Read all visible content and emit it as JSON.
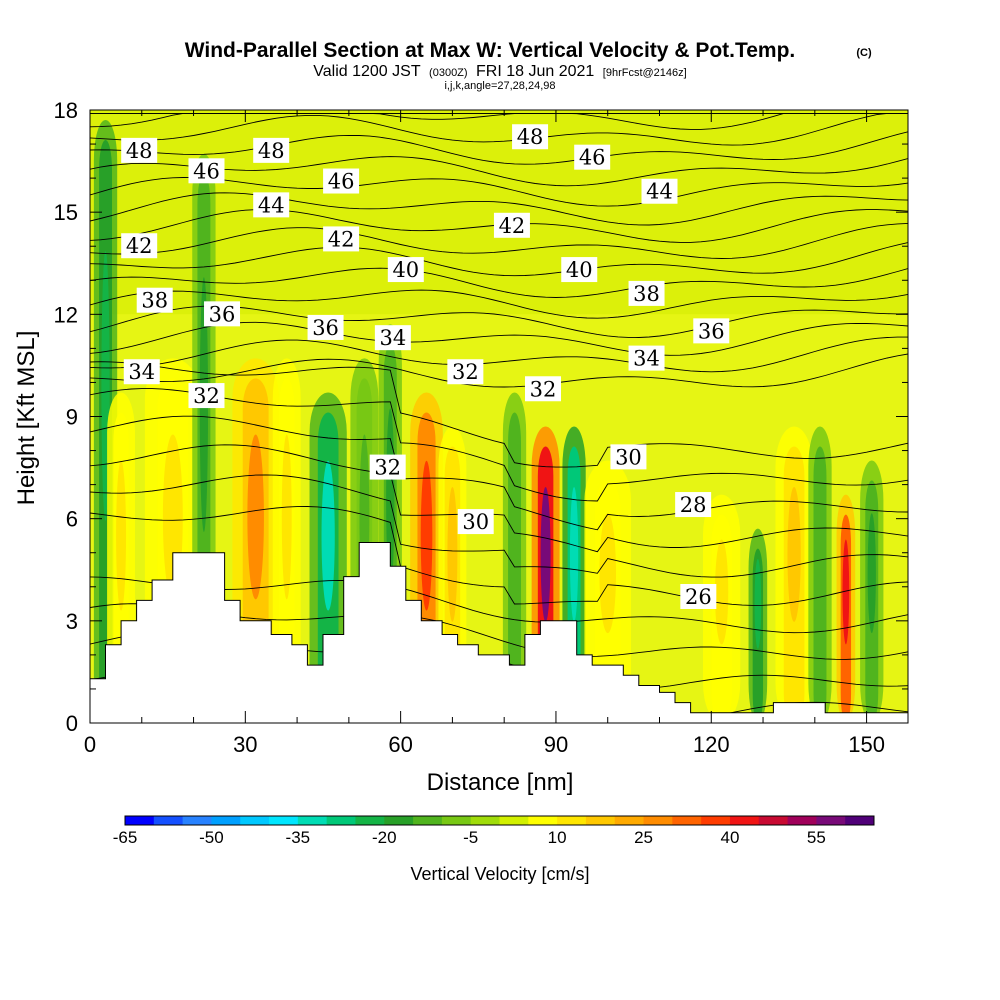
{
  "title": {
    "main": "Wind-Parallel Section at Max W: Vertical Velocity & Pot.Temp.",
    "copyright": "(C)",
    "valid_prefix": "Valid 1200 JST",
    "valid_utc": "(0300Z)",
    "valid_date": "FRI 18 Jun 2021",
    "forecast": "[9hrFcst@2146z]",
    "indices": "i,j,k,angle=27,28,24,98"
  },
  "chart_data": {
    "type": "heatmap",
    "xlabel": "Distance [nm]",
    "ylabel": "Height [Kft MSL]",
    "xlim": [
      0,
      158
    ],
    "ylim": [
      0,
      18
    ],
    "x_ticks": [
      0,
      30,
      60,
      90,
      120,
      150
    ],
    "y_ticks": [
      0,
      3,
      6,
      9,
      12,
      15,
      18
    ],
    "grid": false,
    "colorbar": {
      "title": "Vertical Velocity [cm/s]",
      "placement": "bottom",
      "bins": [
        -65,
        -60,
        -55,
        -50,
        -45,
        -40,
        -35,
        -30,
        -25,
        -20,
        -15,
        -10,
        -5,
        0,
        5,
        10,
        15,
        20,
        25,
        30,
        35,
        40,
        45,
        50,
        55,
        60
      ],
      "tick_labels": [
        "-65",
        "-50",
        "-35",
        "-20",
        "-5",
        "10",
        "25",
        "40",
        "55"
      ],
      "colors": [
        "#0000ff",
        "#1450ff",
        "#2882ff",
        "#00a0ff",
        "#00c8ff",
        "#00e6ff",
        "#00dcb4",
        "#00c878",
        "#14b446",
        "#28a028",
        "#50b41e",
        "#78c814",
        "#a0dc0a",
        "#d2f000",
        "#ffff00",
        "#ffe600",
        "#ffc800",
        "#ffaa00",
        "#ff8c00",
        "#ff6400",
        "#ff3c00",
        "#f01414",
        "#c80a32",
        "#a0005a",
        "#780a78",
        "#500078"
      ]
    },
    "potential_temperature_contours": {
      "labels": [
        {
          "text": "48",
          "x": 9.5,
          "y": 16.8
        },
        {
          "text": "48",
          "x": 35,
          "y": 16.8
        },
        {
          "text": "48",
          "x": 85,
          "y": 17.2
        },
        {
          "text": "46",
          "x": 22.5,
          "y": 16.2
        },
        {
          "text": "46",
          "x": 48.5,
          "y": 15.9
        },
        {
          "text": "46",
          "x": 97,
          "y": 16.6
        },
        {
          "text": "44",
          "x": 35,
          "y": 15.2
        },
        {
          "text": "44",
          "x": 110,
          "y": 15.6
        },
        {
          "text": "42",
          "x": 9.5,
          "y": 14.0
        },
        {
          "text": "42",
          "x": 48.5,
          "y": 14.2
        },
        {
          "text": "42",
          "x": 81.5,
          "y": 14.6
        },
        {
          "text": "40",
          "x": 61,
          "y": 13.3
        },
        {
          "text": "40",
          "x": 94.5,
          "y": 13.3
        },
        {
          "text": "38",
          "x": 12.5,
          "y": 12.4
        },
        {
          "text": "38",
          "x": 107.5,
          "y": 12.6
        },
        {
          "text": "36",
          "x": 25.5,
          "y": 12.0
        },
        {
          "text": "36",
          "x": 45.5,
          "y": 11.6
        },
        {
          "text": "36",
          "x": 120,
          "y": 11.5
        },
        {
          "text": "34",
          "x": 10,
          "y": 10.3
        },
        {
          "text": "34",
          "x": 58.5,
          "y": 11.3
        },
        {
          "text": "34",
          "x": 107.5,
          "y": 10.7
        },
        {
          "text": "32",
          "x": 22.5,
          "y": 9.6
        },
        {
          "text": "32",
          "x": 72.5,
          "y": 10.3
        },
        {
          "text": "32",
          "x": 87.5,
          "y": 9.8
        },
        {
          "text": "32",
          "x": 57.5,
          "y": 7.5
        },
        {
          "text": "30",
          "x": 74.5,
          "y": 5.9
        },
        {
          "text": "30",
          "x": 104,
          "y": 7.8
        },
        {
          "text": "28",
          "x": 116.5,
          "y": 6.4
        },
        {
          "text": "26",
          "x": 117.5,
          "y": 3.7
        }
      ]
    },
    "vertical_velocity_features": [
      {
        "x": 3,
        "ytop": 18,
        "w": 2.5,
        "value": -25
      },
      {
        "x": 6,
        "ytop": 10,
        "w": 3,
        "value": 10
      },
      {
        "x": 16,
        "ytop": 11,
        "w": 6,
        "value": 12
      },
      {
        "x": 22,
        "ytop": 17,
        "w": 2.5,
        "value": -18
      },
      {
        "x": 32,
        "ytop": 11,
        "w": 5,
        "value": 25
      },
      {
        "x": 38,
        "ytop": 11,
        "w": 3,
        "value": 12
      },
      {
        "x": 46,
        "ytop": 10,
        "w": 4,
        "value": -32
      },
      {
        "x": 53,
        "ytop": 11,
        "w": 3,
        "value": -12
      },
      {
        "x": 58,
        "ytop": 12,
        "w": 2.5,
        "value": -20
      },
      {
        "x": 65,
        "ytop": 10,
        "w": 3.5,
        "value": 38
      },
      {
        "x": 70,
        "ytop": 9,
        "w": 3,
        "value": 15
      },
      {
        "x": 82,
        "ytop": 10,
        "w": 2.5,
        "value": -15
      },
      {
        "x": 88,
        "ytop": 9,
        "w": 3,
        "value": 58
      },
      {
        "x": 93.5,
        "ytop": 9,
        "w": 2.5,
        "value": -35
      },
      {
        "x": 100,
        "ytop": 8,
        "w": 5,
        "value": 12
      },
      {
        "x": 122,
        "ytop": 7,
        "w": 4,
        "value": 10
      },
      {
        "x": 129,
        "ytop": 6,
        "w": 2,
        "value": -25
      },
      {
        "x": 136,
        "ytop": 9,
        "w": 4,
        "value": 15
      },
      {
        "x": 141,
        "ytop": 9,
        "w": 2.5,
        "value": -15
      },
      {
        "x": 146,
        "ytop": 7,
        "w": 2,
        "value": 40
      },
      {
        "x": 151,
        "ytop": 8,
        "w": 2.5,
        "value": -20
      }
    ],
    "terrain": [
      [
        0,
        1.3
      ],
      [
        3,
        1.3
      ],
      [
        3,
        2.3
      ],
      [
        6,
        2.3
      ],
      [
        6,
        3.0
      ],
      [
        9,
        3.0
      ],
      [
        9,
        3.6
      ],
      [
        12,
        3.6
      ],
      [
        12,
        4.2
      ],
      [
        16,
        4.2
      ],
      [
        16,
        5.0
      ],
      [
        26,
        5.0
      ],
      [
        26,
        3.6
      ],
      [
        29,
        3.6
      ],
      [
        29,
        3.0
      ],
      [
        35,
        3.0
      ],
      [
        35,
        2.6
      ],
      [
        39,
        2.6
      ],
      [
        39,
        2.3
      ],
      [
        42,
        2.3
      ],
      [
        42,
        1.7
      ],
      [
        45,
        1.7
      ],
      [
        45,
        2.6
      ],
      [
        49,
        2.6
      ],
      [
        49,
        4.3
      ],
      [
        52,
        4.3
      ],
      [
        52,
        5.3
      ],
      [
        58,
        5.3
      ],
      [
        58,
        4.6
      ],
      [
        61,
        4.6
      ],
      [
        61,
        3.6
      ],
      [
        64,
        3.6
      ],
      [
        64,
        3.0
      ],
      [
        68,
        3.0
      ],
      [
        68,
        2.6
      ],
      [
        71,
        2.6
      ],
      [
        71,
        2.3
      ],
      [
        75,
        2.3
      ],
      [
        75,
        2.0
      ],
      [
        81,
        2.0
      ],
      [
        81,
        1.7
      ],
      [
        84,
        1.7
      ],
      [
        84,
        2.6
      ],
      [
        87,
        2.6
      ],
      [
        87,
        3.0
      ],
      [
        94,
        3.0
      ],
      [
        94,
        2.0
      ],
      [
        97,
        2.0
      ],
      [
        97,
        1.7
      ],
      [
        103,
        1.7
      ],
      [
        103,
        1.4
      ],
      [
        106,
        1.4
      ],
      [
        106,
        1.1
      ],
      [
        110,
        1.1
      ],
      [
        110,
        0.9
      ],
      [
        113,
        0.9
      ],
      [
        113,
        0.6
      ],
      [
        116,
        0.6
      ],
      [
        116,
        0.3
      ],
      [
        132,
        0.3
      ],
      [
        132,
        0.6
      ],
      [
        142,
        0.6
      ],
      [
        142,
        0.3
      ],
      [
        158,
        0.3
      ]
    ]
  }
}
